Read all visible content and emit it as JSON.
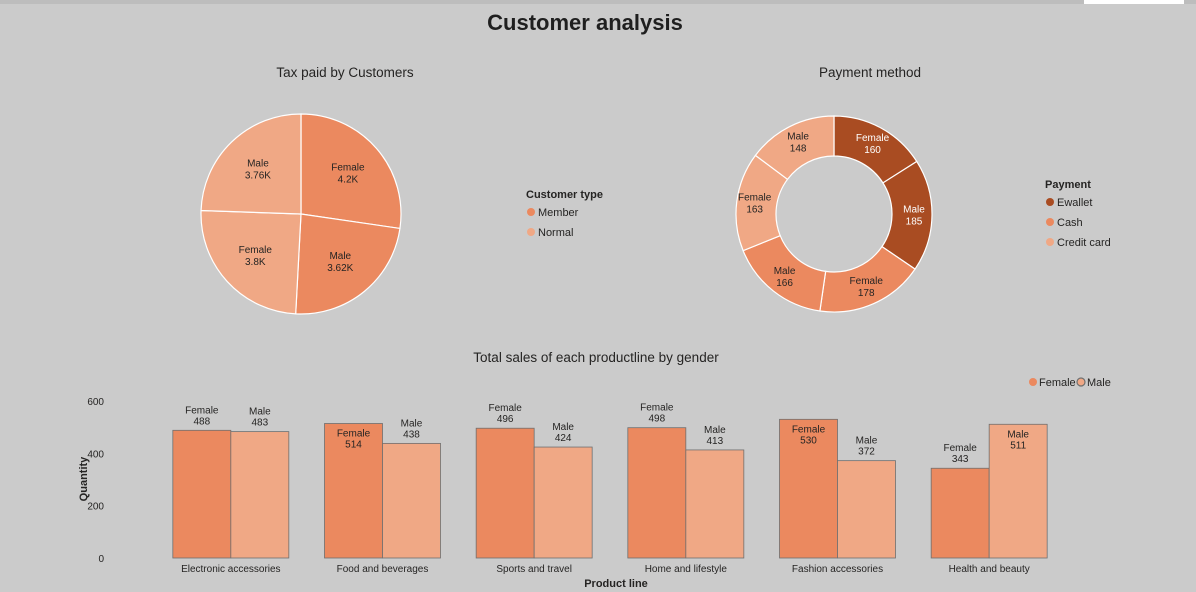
{
  "page_title": "Customer analysis",
  "chart_data": [
    {
      "type": "pie",
      "title": "Tax paid by Customers",
      "legend_title": "Customer type",
      "legend_position": "right",
      "legend": [
        {
          "name": "Member",
          "color": "#eb895f"
        },
        {
          "name": "Normal",
          "color": "#f0a885"
        }
      ],
      "slices": [
        {
          "label": "Female",
          "value_label": "4.2K",
          "value": 4200,
          "customer_type": "Member",
          "color": "#eb895f"
        },
        {
          "label": "Male",
          "value_label": "3.62K",
          "value": 3620,
          "customer_type": "Member",
          "color": "#eb895f"
        },
        {
          "label": "Female",
          "value_label": "3.8K",
          "value": 3800,
          "customer_type": "Normal",
          "color": "#f0a885"
        },
        {
          "label": "Male",
          "value_label": "3.76K",
          "value": 3760,
          "customer_type": "Normal",
          "color": "#f0a885"
        }
      ]
    },
    {
      "type": "pie",
      "donut": true,
      "title": "Payment method",
      "legend_title": "Payment",
      "legend_position": "right",
      "legend": [
        {
          "name": "Ewallet",
          "color": "#a94c22"
        },
        {
          "name": "Cash",
          "color": "#eb895f"
        },
        {
          "name": "Credit card",
          "color": "#f0a885"
        }
      ],
      "slices": [
        {
          "label": "Female",
          "value": 160,
          "payment": "Ewallet",
          "color": "#a94c22"
        },
        {
          "label": "Male",
          "value": 185,
          "payment": "Ewallet",
          "color": "#a94c22"
        },
        {
          "label": "Female",
          "value": 178,
          "payment": "Cash",
          "color": "#eb895f"
        },
        {
          "label": "Male",
          "value": 166,
          "payment": "Cash",
          "color": "#eb895f"
        },
        {
          "label": "Female",
          "value": 163,
          "payment": "Credit card",
          "color": "#f0a885"
        },
        {
          "label": "Male",
          "value": 148,
          "payment": "Credit card",
          "color": "#f0a885"
        }
      ]
    },
    {
      "type": "bar",
      "title": "Total sales of each productline by gender",
      "xlabel": "Product line",
      "ylabel": "Quantity",
      "ylim": [
        0,
        600
      ],
      "yticks": [
        0,
        200,
        400,
        600
      ],
      "legend_position": "top-right",
      "categories": [
        "Electronic accessories",
        "Food and beverages",
        "Sports and travel",
        "Home and lifestyle",
        "Fashion accessories",
        "Health and beauty"
      ],
      "series": [
        {
          "name": "Female",
          "color": "#eb895f",
          "values": [
            488,
            514,
            496,
            498,
            530,
            343
          ]
        },
        {
          "name": "Male",
          "color": "#f0a885",
          "values": [
            483,
            438,
            424,
            413,
            372,
            511
          ]
        }
      ]
    }
  ]
}
